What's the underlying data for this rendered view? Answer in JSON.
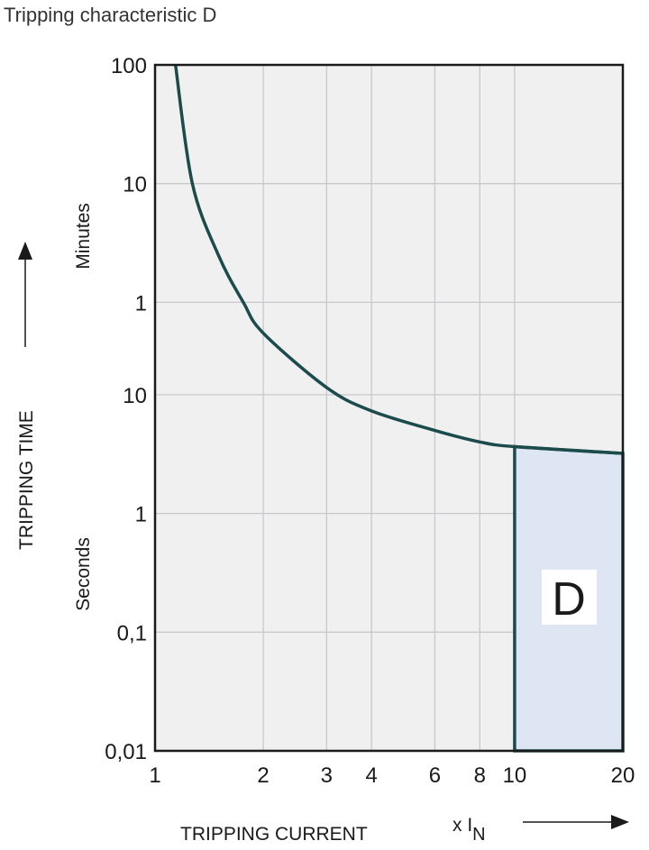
{
  "chart_data": {
    "type": "line",
    "title": "Tripping characteristic D",
    "xlabel": "TRIPPING CURRENT",
    "xunit": "x I",
    "xunit_sub": "N",
    "ylabel": "TRIPPING TIME",
    "y_unit_labels": {
      "minutes": "Minutes",
      "seconds": "Seconds"
    },
    "x_scale": "log",
    "y_scale": "log",
    "xlim": [
      1,
      20
    ],
    "ylim_seconds": [
      0.01,
      6000
    ],
    "grid": true,
    "x_ticks": [
      {
        "value": 1,
        "label": "1"
      },
      {
        "value": 2,
        "label": "2"
      },
      {
        "value": 3,
        "label": "3"
      },
      {
        "value": 4,
        "label": "4"
      },
      {
        "value": 6,
        "label": "6"
      },
      {
        "value": 8,
        "label": "8"
      },
      {
        "value": 10,
        "label": "10"
      },
      {
        "value": 20,
        "label": "20"
      }
    ],
    "y_ticks": [
      {
        "seconds": 6000,
        "label": "100"
      },
      {
        "seconds": 600,
        "label": "10"
      },
      {
        "seconds": 60,
        "label": "1"
      },
      {
        "seconds": 10,
        "label": "10"
      },
      {
        "seconds": 1,
        "label": "1"
      },
      {
        "seconds": 0.1,
        "label": "0,1"
      },
      {
        "seconds": 0.01,
        "label": "0,01"
      }
    ],
    "series": [
      {
        "x": [
          1.14,
          1.27,
          1.5,
          1.76,
          2,
          3,
          4,
          6,
          8,
          10,
          20
        ],
        "y_seconds": [
          6000,
          600,
          150,
          60,
          33,
          11.5,
          7.3,
          5,
          4,
          3.65,
          3.2
        ]
      }
    ],
    "region": {
      "label": "D",
      "x_from": 10,
      "x_to": 20,
      "y_bottom_seconds": 0.01
    },
    "colors": {
      "curve": "#1b4b4b",
      "plot_bg": "#f0f0f0",
      "grid": "#c8c8cc",
      "region_fill": "#dfe6f3",
      "label_bg": "#ffffff"
    }
  }
}
